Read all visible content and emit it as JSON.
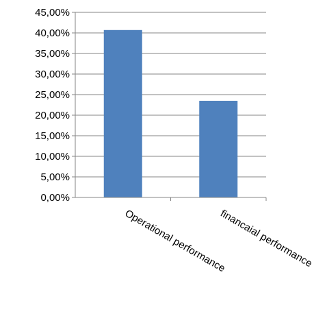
{
  "chart_data": {
    "type": "bar",
    "categories": [
      "Operational performance",
      "financaial performance"
    ],
    "values": [
      40.7,
      23.5
    ],
    "ylim": [
      0,
      45
    ],
    "yticks": [
      "0,00%",
      "5,00%",
      "10,00%",
      "15,00%",
      "20,00%",
      "25,00%",
      "30,00%",
      "35,00%",
      "40,00%",
      "45,00%"
    ],
    "grid": true,
    "legend": "none",
    "bar_color": "#4F81BD",
    "grid_color": "#868686"
  }
}
